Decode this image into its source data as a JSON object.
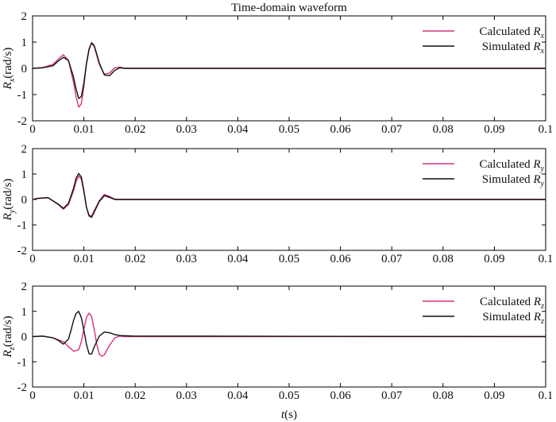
{
  "figure": {
    "title": "Time-domain waveform",
    "xlabel_var": "t",
    "xlabel_unit": "(s)"
  },
  "colors": {
    "calculated": "#d6337f",
    "simulated": "#111111"
  },
  "chart_data": [
    {
      "type": "line",
      "ylabel_var": "R",
      "ylabel_sub": "x",
      "ylabel_unit": "(rad/s)",
      "xlim": [
        0,
        0.1
      ],
      "ylim": [
        -2,
        2
      ],
      "xticks": [
        0,
        0.01,
        0.02,
        0.03,
        0.04,
        0.05,
        0.06,
        0.07,
        0.08,
        0.09,
        0.1
      ],
      "xtick_labels": [
        "0",
        "0.01",
        "0.02",
        "0.03",
        "0.04",
        "0.05",
        "0.06",
        "0.07",
        "0.08",
        "0.09",
        "0.1"
      ],
      "yticks": [
        -2,
        -1,
        0,
        1,
        2
      ],
      "ytick_labels": [
        "-2",
        "-1",
        "0",
        "1",
        "2"
      ],
      "legend_position": "top-right",
      "series": [
        {
          "name_prefix": "Calculated ",
          "name_var": "R",
          "name_sub": "x",
          "color": "#d6337f",
          "x": [
            0,
            0.002,
            0.004,
            0.005,
            0.006,
            0.007,
            0.008,
            0.0085,
            0.009,
            0.0095,
            0.01,
            0.0105,
            0.011,
            0.0115,
            0.012,
            0.0125,
            0.013,
            0.014,
            0.015,
            0.016,
            0.017,
            0.018,
            0.1
          ],
          "y": [
            0,
            0.03,
            0.15,
            0.35,
            0.52,
            0.3,
            -0.55,
            -1.1,
            -1.48,
            -1.35,
            -0.7,
            0.2,
            0.75,
            0.95,
            0.85,
            0.5,
            0.15,
            -0.22,
            -0.18,
            0.02,
            0.05,
            0,
            0
          ]
        },
        {
          "name_prefix": "Simulated ",
          "name_var": "R",
          "name_sub": "x",
          "color": "#111111",
          "x": [
            0,
            0.002,
            0.004,
            0.005,
            0.006,
            0.007,
            0.008,
            0.0085,
            0.009,
            0.0095,
            0.01,
            0.0105,
            0.011,
            0.0115,
            0.012,
            0.0125,
            0.013,
            0.014,
            0.015,
            0.016,
            0.017,
            0.018,
            0.1
          ],
          "y": [
            0,
            0.02,
            0.1,
            0.28,
            0.42,
            0.3,
            -0.35,
            -0.8,
            -1.15,
            -1.08,
            -0.55,
            0.15,
            0.72,
            0.98,
            0.88,
            0.55,
            0.2,
            -0.25,
            -0.28,
            -0.08,
            0.02,
            0,
            0
          ]
        }
      ]
    },
    {
      "type": "line",
      "ylabel_var": "R",
      "ylabel_sub": "y",
      "ylabel_unit": "(rad/s)",
      "xlim": [
        0,
        0.1
      ],
      "ylim": [
        -2,
        2
      ],
      "xticks": [
        0,
        0.01,
        0.02,
        0.03,
        0.04,
        0.05,
        0.06,
        0.07,
        0.08,
        0.09,
        0.1
      ],
      "xtick_labels": [
        "0",
        "0.01",
        "0.02",
        "0.03",
        "0.04",
        "0.05",
        "0.06",
        "0.07",
        "0.08",
        "0.09",
        "0.1"
      ],
      "yticks": [
        -2,
        -1,
        0,
        1,
        2
      ],
      "ytick_labels": [
        "-2",
        "-1",
        "0",
        "1",
        "2"
      ],
      "legend_position": "top-right",
      "series": [
        {
          "name_prefix": "Calculated ",
          "name_var": "R",
          "name_sub": "y",
          "color": "#d6337f",
          "x": [
            0,
            0.001,
            0.003,
            0.005,
            0.006,
            0.007,
            0.008,
            0.0085,
            0.009,
            0.0095,
            0.01,
            0.0105,
            0.011,
            0.0115,
            0.012,
            0.013,
            0.014,
            0.015,
            0.016,
            0.017,
            0.1
          ],
          "y": [
            0,
            0.05,
            0.08,
            -0.2,
            -0.38,
            -0.2,
            0.35,
            0.72,
            0.92,
            0.8,
            0.3,
            -0.3,
            -0.62,
            -0.65,
            -0.45,
            -0.05,
            0.2,
            0.12,
            0.02,
            0,
            0
          ]
        },
        {
          "name_prefix": "Simulated ",
          "name_var": "R",
          "name_sub": "y",
          "color": "#111111",
          "x": [
            0,
            0.001,
            0.003,
            0.005,
            0.006,
            0.007,
            0.008,
            0.0085,
            0.009,
            0.0095,
            0.01,
            0.0105,
            0.011,
            0.0115,
            0.012,
            0.013,
            0.014,
            0.015,
            0.016,
            0.017,
            0.1
          ],
          "y": [
            0,
            0.04,
            0.07,
            -0.18,
            -0.35,
            -0.15,
            0.45,
            0.85,
            1.02,
            0.88,
            0.35,
            -0.3,
            -0.65,
            -0.7,
            -0.5,
            -0.08,
            0.15,
            0.08,
            0.0,
            0,
            0
          ]
        }
      ]
    },
    {
      "type": "line",
      "ylabel_var": "R",
      "ylabel_sub": "z",
      "ylabel_unit": "(rad/s)",
      "xlim": [
        0,
        0.1
      ],
      "ylim": [
        -2,
        2
      ],
      "xticks": [
        0,
        0.01,
        0.02,
        0.03,
        0.04,
        0.05,
        0.06,
        0.07,
        0.08,
        0.09,
        0.1
      ],
      "xtick_labels": [
        "0",
        "0.01",
        "0.02",
        "0.03",
        "0.04",
        "0.05",
        "0.06",
        "0.07",
        "0.08",
        "0.09",
        "0.1"
      ],
      "yticks": [
        -2,
        -1,
        0,
        1,
        2
      ],
      "ytick_labels": [
        "-2",
        "-1",
        "0",
        "1",
        "2"
      ],
      "legend_position": "top-right",
      "series": [
        {
          "name_prefix": "Calculated ",
          "name_var": "R",
          "name_sub": "z",
          "color": "#d6337f",
          "x": [
            0,
            0.002,
            0.004,
            0.006,
            0.007,
            0.008,
            0.009,
            0.0095,
            0.01,
            0.0105,
            0.011,
            0.0115,
            0.012,
            0.0125,
            0.013,
            0.0135,
            0.014,
            0.015,
            0.016,
            0.017,
            0.018,
            0.1
          ],
          "y": [
            0,
            0.02,
            -0.05,
            -0.2,
            -0.4,
            -0.58,
            -0.52,
            -0.2,
            0.3,
            0.75,
            0.93,
            0.8,
            0.3,
            -0.3,
            -0.7,
            -0.78,
            -0.72,
            -0.35,
            -0.05,
            0.02,
            0,
            0
          ]
        },
        {
          "name_prefix": "Simulated ",
          "name_var": "R",
          "name_sub": "z",
          "color": "#111111",
          "x": [
            0,
            0.002,
            0.004,
            0.005,
            0.006,
            0.007,
            0.0075,
            0.008,
            0.0085,
            0.009,
            0.0095,
            0.01,
            0.0105,
            0.011,
            0.0115,
            0.012,
            0.013,
            0.014,
            0.015,
            0.016,
            0.017,
            0.018,
            0.02,
            0.1
          ],
          "y": [
            0,
            0.02,
            -0.05,
            -0.15,
            -0.3,
            -0.1,
            0.25,
            0.65,
            0.92,
            1.0,
            0.75,
            0.25,
            -0.3,
            -0.68,
            -0.7,
            -0.42,
            0.02,
            0.18,
            0.15,
            0.08,
            0.04,
            0.03,
            0.02,
            0
          ]
        }
      ]
    }
  ]
}
